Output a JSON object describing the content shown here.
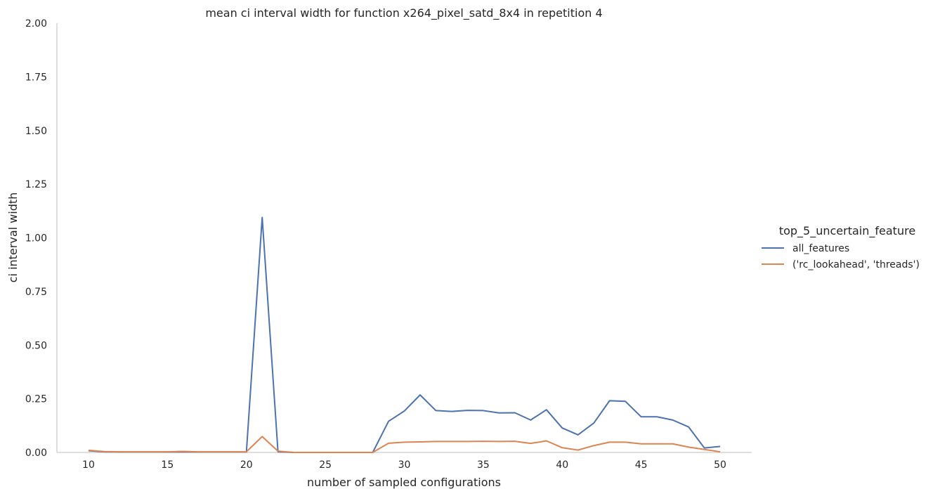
{
  "chart_data": {
    "type": "line",
    "title": "mean ci interval width for function x264_pixel_satd_8x4 in repetition 4",
    "xlabel": "number of sampled configurations",
    "ylabel": "ci interval width",
    "xlim": [
      8,
      52
    ],
    "ylim": [
      0,
      2.0
    ],
    "xticks": [
      10,
      15,
      20,
      25,
      30,
      35,
      40,
      45,
      50
    ],
    "yticks": [
      0.0,
      0.25,
      0.5,
      0.75,
      1.0,
      1.25,
      1.5,
      1.75,
      2.0
    ],
    "ytick_labels": [
      "0.00",
      "0.25",
      "0.50",
      "0.75",
      "1.00",
      "1.25",
      "1.50",
      "1.75",
      "2.00"
    ],
    "grid": false,
    "legend": {
      "title": "top_5_uncertain_feature",
      "placement": "right"
    },
    "x": [
      10,
      11,
      12,
      13,
      14,
      15,
      16,
      17,
      18,
      19,
      20,
      21,
      22,
      23,
      24,
      25,
      26,
      27,
      28,
      29,
      30,
      31,
      32,
      33,
      34,
      35,
      36,
      37,
      38,
      39,
      40,
      41,
      42,
      43,
      44,
      45,
      46,
      47,
      48,
      49,
      50
    ],
    "series": [
      {
        "name": "all_features",
        "color": "#4c72b0",
        "values": [
          0.008,
          0.003,
          0.002,
          0.002,
          0.002,
          0.002,
          0.002,
          0.002,
          0.002,
          0.002,
          0.002,
          1.095,
          0.003,
          0.0,
          0.0,
          0.0,
          0.0,
          0.0,
          0.0,
          0.145,
          0.193,
          0.268,
          0.195,
          0.191,
          0.196,
          0.195,
          0.184,
          0.185,
          0.151,
          0.199,
          0.114,
          0.082,
          0.137,
          0.241,
          0.238,
          0.166,
          0.166,
          0.151,
          0.119,
          0.021,
          0.028
        ]
      },
      {
        "name": "('rc_lookahead', 'threads')",
        "color": "#dd8452",
        "values": [
          0.01,
          0.004,
          0.003,
          0.003,
          0.003,
          0.003,
          0.005,
          0.003,
          0.003,
          0.003,
          0.003,
          0.074,
          0.006,
          0.0,
          0.0,
          0.0,
          0.0,
          0.0,
          0.0,
          0.043,
          0.048,
          0.049,
          0.051,
          0.051,
          0.051,
          0.052,
          0.051,
          0.052,
          0.042,
          0.054,
          0.022,
          0.011,
          0.032,
          0.048,
          0.048,
          0.04,
          0.04,
          0.04,
          0.025,
          0.014,
          0.003
        ]
      }
    ]
  }
}
